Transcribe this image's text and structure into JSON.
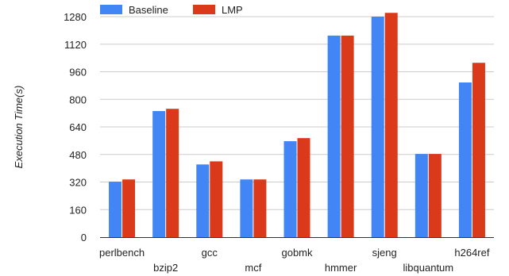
{
  "chart_data": {
    "type": "bar",
    "title": "",
    "xlabel": "",
    "ylabel": "Execution Time(s)",
    "ylim": [
      0,
      1280
    ],
    "yticks": [
      0,
      160,
      320,
      480,
      640,
      800,
      960,
      1120,
      1280
    ],
    "grid": true,
    "legend_position": "top",
    "categories": [
      "perlbench",
      "bzip2",
      "gcc",
      "mcf",
      "gobmk",
      "hmmer",
      "sjeng",
      "libquantum",
      "h264ref"
    ],
    "series": [
      {
        "name": "Baseline",
        "color": "#4285F4",
        "values": [
          322,
          732,
          422,
          335,
          557,
          1170,
          1280,
          483,
          898
        ]
      },
      {
        "name": "LMP",
        "color": "#DB3A1A",
        "values": [
          335,
          745,
          440,
          335,
          575,
          1170,
          1302,
          483,
          1012
        ]
      }
    ]
  }
}
